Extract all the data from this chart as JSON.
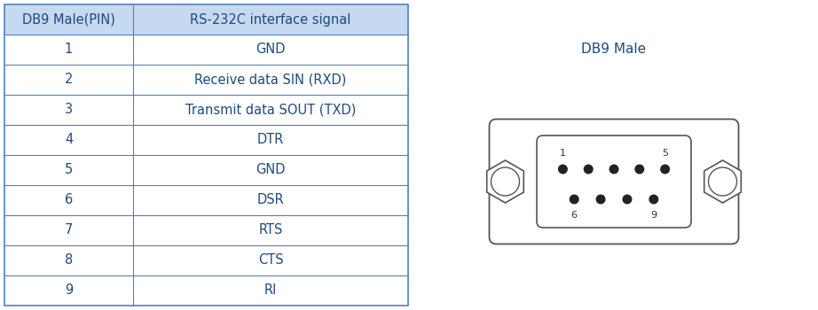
{
  "table_headers": [
    "DB9 Male(PIN)",
    "RS-232C interface signal"
  ],
  "table_rows": [
    [
      "1",
      "GND"
    ],
    [
      "2",
      "Receive data SIN (RXD)"
    ],
    [
      "3",
      "Transmit data SOUT (TXD)"
    ],
    [
      "4",
      "DTR"
    ],
    [
      "5",
      "GND"
    ],
    [
      "6",
      "DSR"
    ],
    [
      "7",
      "RTS"
    ],
    [
      "8",
      "CTS"
    ],
    [
      "9",
      "RI"
    ]
  ],
  "header_bg_color": "#c5d9f1",
  "header_text_color": "#1f497d",
  "cell_text_color": "#1f497d",
  "line_color": "#4f81bd",
  "db9_label": "DB9 Male",
  "db9_label_color": "#1f497d",
  "background_color": "#ffffff",
  "figsize": [
    9.22,
    3.5
  ],
  "dpi": 100
}
